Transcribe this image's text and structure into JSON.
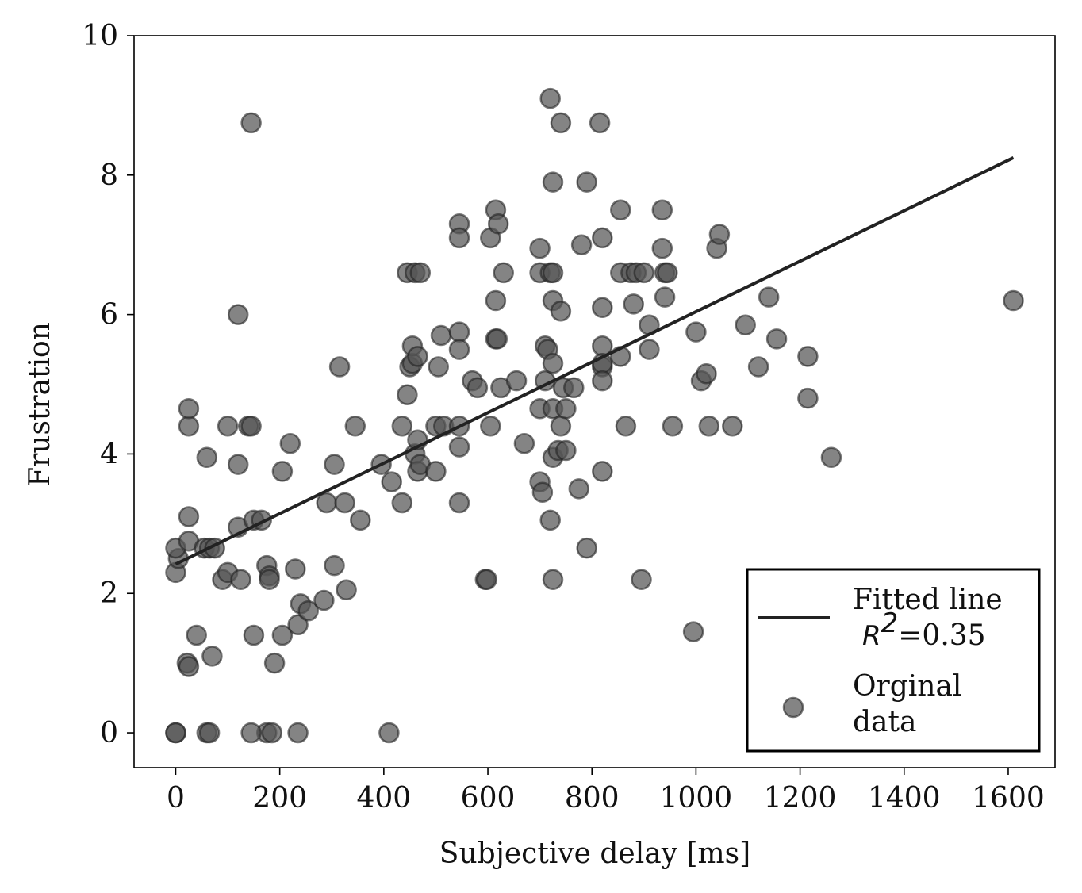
{
  "chart_data": {
    "type": "scatter",
    "title": "",
    "xlabel": "Subjective delay [ms]",
    "ylabel": "Frustration",
    "xlim": [
      -80,
      1690
    ],
    "ylim": [
      -0.5,
      10
    ],
    "xticks": [
      0,
      200,
      400,
      600,
      800,
      1000,
      1200,
      1400,
      1600
    ],
    "xtick_labels": [
      "0",
      "200",
      "400",
      "600",
      "800",
      "1000",
      "1200",
      "1400",
      "1600"
    ],
    "yticks": [
      0,
      2,
      4,
      6,
      8,
      10
    ],
    "ytick_labels": [
      "0",
      "2",
      "4",
      "6",
      "8",
      "10"
    ],
    "grid": false,
    "legend_position": "lower-right",
    "legend": {
      "line_label_1": "Fitted line",
      "line_label_r": "R",
      "line_label_sup": "2",
      "line_label_val": "=0.35",
      "scatter_label_1": "Orginal",
      "scatter_label_2": "data"
    },
    "colors": {
      "points": "#555555",
      "point_edge": "#222222",
      "fit_line": "#222222"
    },
    "series": [
      {
        "name": "Orginal data",
        "kind": "scatter",
        "points": [
          [
            0,
            0
          ],
          [
            0,
            0
          ],
          [
            60,
            0
          ],
          [
            65,
            0
          ],
          [
            175,
            0
          ],
          [
            185,
            0
          ],
          [
            145,
            0
          ],
          [
            235,
            0
          ],
          [
            410,
            0
          ],
          [
            22,
            1.0
          ],
          [
            25,
            0.95
          ],
          [
            70,
            1.1
          ],
          [
            40,
            1.4
          ],
          [
            150,
            1.4
          ],
          [
            205,
            1.4
          ],
          [
            190,
            1.0
          ],
          [
            235,
            1.55
          ],
          [
            240,
            1.85
          ],
          [
            255,
            1.75
          ],
          [
            285,
            1.9
          ],
          [
            328,
            2.05
          ],
          [
            305,
            2.4
          ],
          [
            0,
            2.3
          ],
          [
            5,
            2.5
          ],
          [
            90,
            2.2
          ],
          [
            100,
            2.3
          ],
          [
            125,
            2.2
          ],
          [
            175,
            2.4
          ],
          [
            180,
            2.25
          ],
          [
            180,
            2.2
          ],
          [
            230,
            2.35
          ],
          [
            0,
            2.65
          ],
          [
            25,
            2.75
          ],
          [
            55,
            2.65
          ],
          [
            65,
            2.65
          ],
          [
            75,
            2.65
          ],
          [
            25,
            3.1
          ],
          [
            120,
            2.95
          ],
          [
            150,
            3.05
          ],
          [
            165,
            3.05
          ],
          [
            290,
            3.3
          ],
          [
            325,
            3.3
          ],
          [
            355,
            3.05
          ],
          [
            25,
            4.4
          ],
          [
            25,
            4.65
          ],
          [
            100,
            4.4
          ],
          [
            140,
            4.4
          ],
          [
            145,
            4.4
          ],
          [
            60,
            3.95
          ],
          [
            120,
            3.85
          ],
          [
            205,
            3.75
          ],
          [
            220,
            4.15
          ],
          [
            305,
            3.85
          ],
          [
            120,
            6.0
          ],
          [
            145,
            8.75
          ],
          [
            315,
            5.25
          ],
          [
            345,
            4.4
          ],
          [
            395,
            3.85
          ],
          [
            415,
            3.6
          ],
          [
            435,
            3.3
          ],
          [
            435,
            4.4
          ],
          [
            445,
            4.85
          ],
          [
            450,
            5.25
          ],
          [
            455,
            5.3
          ],
          [
            455,
            5.55
          ],
          [
            465,
            5.4
          ],
          [
            460,
            4.0
          ],
          [
            465,
            4.2
          ],
          [
            465,
            3.75
          ],
          [
            470,
            3.85
          ],
          [
            500,
            3.75
          ],
          [
            500,
            4.4
          ],
          [
            515,
            4.4
          ],
          [
            505,
            5.25
          ],
          [
            510,
            5.7
          ],
          [
            545,
            4.4
          ],
          [
            545,
            4.1
          ],
          [
            545,
            3.3
          ],
          [
            545,
            5.75
          ],
          [
            545,
            5.5
          ],
          [
            570,
            5.05
          ],
          [
            580,
            4.95
          ],
          [
            605,
            4.4
          ],
          [
            595,
            2.2
          ],
          [
            598,
            2.2
          ],
          [
            445,
            6.6
          ],
          [
            460,
            6.6
          ],
          [
            470,
            6.6
          ],
          [
            545,
            7.3
          ],
          [
            545,
            7.1
          ],
          [
            605,
            7.1
          ],
          [
            615,
            7.5
          ],
          [
            620,
            7.3
          ],
          [
            615,
            6.2
          ],
          [
            630,
            6.6
          ],
          [
            615,
            5.65
          ],
          [
            618,
            5.65
          ],
          [
            625,
            4.95
          ],
          [
            655,
            5.05
          ],
          [
            670,
            4.15
          ],
          [
            700,
            3.6
          ],
          [
            705,
            3.45
          ],
          [
            700,
            4.65
          ],
          [
            710,
            5.55
          ],
          [
            715,
            5.5
          ],
          [
            710,
            5.05
          ],
          [
            725,
            5.3
          ],
          [
            725,
            4.65
          ],
          [
            725,
            3.95
          ],
          [
            720,
            3.05
          ],
          [
            735,
            4.05
          ],
          [
            740,
            4.4
          ],
          [
            745,
            4.95
          ],
          [
            750,
            4.65
          ],
          [
            750,
            4.05
          ],
          [
            765,
            4.95
          ],
          [
            775,
            3.5
          ],
          [
            790,
            2.65
          ],
          [
            725,
            2.2
          ],
          [
            700,
            6.6
          ],
          [
            700,
            6.95
          ],
          [
            720,
            6.6
          ],
          [
            725,
            6.6
          ],
          [
            725,
            6.2
          ],
          [
            740,
            6.05
          ],
          [
            725,
            7.9
          ],
          [
            720,
            9.1
          ],
          [
            740,
            8.75
          ],
          [
            790,
            7.9
          ],
          [
            780,
            7.0
          ],
          [
            820,
            7.1
          ],
          [
            820,
            6.1
          ],
          [
            815,
            8.75
          ],
          [
            820,
            5.55
          ],
          [
            820,
            5.25
          ],
          [
            820,
            5.3
          ],
          [
            820,
            5.05
          ],
          [
            820,
            3.75
          ],
          [
            855,
            5.4
          ],
          [
            855,
            6.6
          ],
          [
            855,
            7.5
          ],
          [
            865,
            4.4
          ],
          [
            875,
            6.6
          ],
          [
            880,
            6.15
          ],
          [
            885,
            6.6
          ],
          [
            900,
            6.6
          ],
          [
            895,
            2.2
          ],
          [
            910,
            5.85
          ],
          [
            910,
            5.5
          ],
          [
            935,
            7.5
          ],
          [
            935,
            6.95
          ],
          [
            940,
            6.6
          ],
          [
            945,
            6.6
          ],
          [
            940,
            6.25
          ],
          [
            955,
            4.4
          ],
          [
            995,
            1.45
          ],
          [
            1000,
            5.75
          ],
          [
            1010,
            5.05
          ],
          [
            1020,
            5.15
          ],
          [
            1025,
            4.4
          ],
          [
            1040,
            6.95
          ],
          [
            1045,
            7.15
          ],
          [
            1070,
            4.4
          ],
          [
            1095,
            5.85
          ],
          [
            1120,
            5.25
          ],
          [
            1140,
            6.25
          ],
          [
            1155,
            5.65
          ],
          [
            1215,
            5.4
          ],
          [
            1215,
            4.8
          ],
          [
            1260,
            3.95
          ],
          [
            1610,
            6.2
          ]
        ]
      },
      {
        "name": "Fitted line",
        "kind": "line",
        "points": [
          [
            0,
            2.42
          ],
          [
            1610,
            8.25
          ]
        ]
      }
    ]
  }
}
